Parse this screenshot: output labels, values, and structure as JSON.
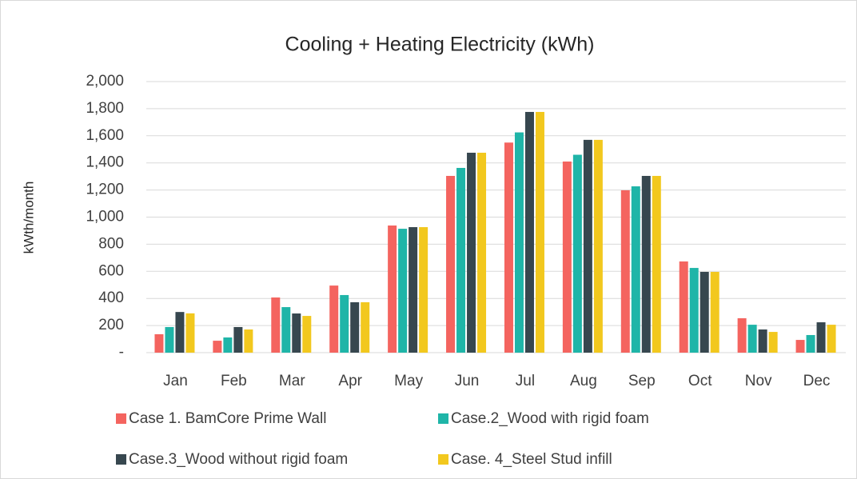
{
  "chart_data": {
    "type": "bar",
    "title": "Cooling + Heating Electricity (kWh)",
    "y_label": "kWth/month",
    "categories": [
      "Jan",
      "Feb",
      "Mar",
      "Apr",
      "May",
      "Jun",
      "Jul",
      "Aug",
      "Sep",
      "Oct",
      "Nov",
      "Dec"
    ],
    "series": [
      {
        "name": "Case 1. BamCore Prime Wall",
        "color": "#f4645f",
        "values": [
          136,
          88,
          407,
          495,
          938,
          1304,
          1550,
          1410,
          1198,
          673,
          254,
          94
        ]
      },
      {
        "name": "Case.2_Wood with rigid foam",
        "color": "#1fb5a8",
        "values": [
          189,
          112,
          336,
          425,
          914,
          1363,
          1625,
          1460,
          1227,
          625,
          206,
          130
        ]
      },
      {
        "name": "Case.3_Wood without rigid foam",
        "color": "#37474f",
        "values": [
          300,
          189,
          289,
          372,
          926,
          1475,
          1776,
          1570,
          1304,
          596,
          171,
          224
        ]
      },
      {
        "name": "Case. 4_Steel Stud infill",
        "color": "#f2c81e",
        "values": [
          290,
          171,
          271,
          372,
          926,
          1475,
          1776,
          1570,
          1304,
          596,
          153,
          206
        ]
      }
    ],
    "ylim": [
      0,
      2000
    ],
    "yticks": [
      {
        "value": 0,
        "label": "-"
      },
      200,
      400,
      600,
      800,
      {
        "value": 1000,
        "label": "1,000"
      },
      {
        "value": 1200,
        "label": "1,200"
      },
      {
        "value": 1400,
        "label": "1,400"
      },
      {
        "value": 1600,
        "label": "1,600"
      },
      {
        "value": 1800,
        "label": "1,800"
      },
      {
        "value": 2000,
        "label": "2,000"
      }
    ],
    "grid": true,
    "legend": "bottom"
  }
}
